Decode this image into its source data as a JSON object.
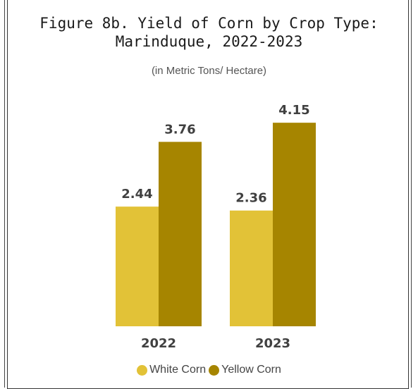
{
  "chart_data": {
    "type": "bar",
    "title": "Figure 8b. Yield of Corn by Crop Type:\nMarinduque, 2022-2023",
    "subtitle": "(in Metric Tons/ Hectare)",
    "categories": [
      "2022",
      "2023"
    ],
    "series": [
      {
        "name": "White Corn",
        "values": [
          2.44,
          2.36
        ],
        "color": "#E2C237",
        "labels": [
          "2.44",
          "2.36"
        ]
      },
      {
        "name": "Yellow Corn",
        "values": [
          3.76,
          4.15
        ],
        "color": "#A68500",
        "labels": [
          "3.76",
          "4.15"
        ]
      }
    ],
    "xlabel": "",
    "ylabel": "",
    "ylim": [
      0,
      4.8
    ],
    "grid": false,
    "legend": "bottom"
  }
}
